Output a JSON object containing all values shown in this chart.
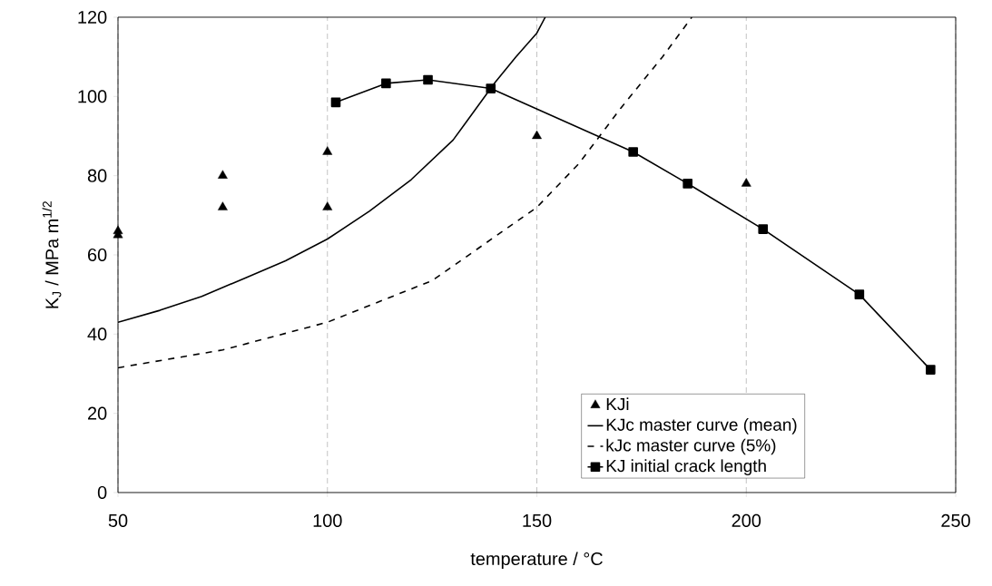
{
  "chart_data": {
    "type": "line",
    "xlabel": "temperature / °C",
    "ylabel": "K$_{J}$ / MPa m$^{1/2}$",
    "xlim": [
      50,
      250
    ],
    "ylim": [
      0,
      120
    ],
    "xticks": [
      50,
      100,
      150,
      200,
      250
    ],
    "yticks": [
      0,
      20,
      40,
      60,
      80,
      100,
      120
    ],
    "grid": "x",
    "legend": "bottom right",
    "series": [
      {
        "name": "KJi",
        "type": "scatter",
        "marker": "triangle",
        "color": "#000000",
        "x": [
          50,
          50,
          75,
          75,
          100,
          100,
          150,
          200
        ],
        "values": [
          66,
          65,
          80,
          72,
          86,
          72,
          90,
          78
        ]
      },
      {
        "name": "KJc master curve (mean)",
        "marker": "none",
        "line_style": "solid",
        "color": "#000000",
        "x": [
          50,
          60,
          70,
          80,
          90,
          100,
          110,
          120,
          130,
          140,
          145,
          150,
          152
        ],
        "values": [
          43,
          46,
          49.5,
          54,
          58.5,
          64,
          71,
          79,
          89,
          103.5,
          110,
          116,
          120
        ]
      },
      {
        "name": "kJc master curve (5%)",
        "marker": "none",
        "line_style": "dashed",
        "color": "#000000",
        "x": [
          50,
          75,
          100,
          125,
          150,
          160,
          170,
          180,
          187
        ],
        "values": [
          31.5,
          36,
          43,
          53.5,
          72,
          83,
          97,
          110,
          120
        ]
      },
      {
        "name": "KJ initial crack length",
        "marker": "square",
        "line_style": "solid",
        "color": "#000000",
        "x": [
          102,
          114,
          124,
          139,
          173,
          186,
          204,
          227,
          244
        ],
        "values": [
          98.5,
          103.3,
          104.2,
          102,
          86,
          78,
          66.5,
          50,
          31
        ]
      }
    ]
  }
}
